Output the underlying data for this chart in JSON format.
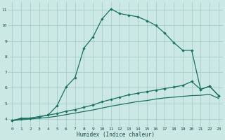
{
  "background_color": "#cce8e5",
  "grid_color": "#a8ceca",
  "line_color": "#1a7060",
  "xlabel": "Humidex (Indice chaleur)",
  "ylim": [
    3.5,
    11.5
  ],
  "xlim": [
    -0.5,
    23.5
  ],
  "ytick_vals": [
    4,
    5,
    6,
    7,
    8,
    9,
    10,
    11
  ],
  "xtick_vals": [
    0,
    1,
    2,
    3,
    4,
    5,
    6,
    7,
    8,
    9,
    10,
    11,
    12,
    13,
    14,
    15,
    16,
    17,
    18,
    19,
    20,
    21,
    22,
    23
  ],
  "line1_x": [
    0,
    1,
    2,
    3,
    4,
    5,
    6,
    7,
    8,
    9,
    10,
    11,
    12,
    13,
    14,
    15,
    16,
    17,
    18,
    19,
    20,
    21,
    22,
    23
  ],
  "line1_y": [
    3.9,
    4.05,
    4.05,
    4.15,
    4.25,
    4.85,
    6.05,
    6.65,
    8.55,
    9.25,
    10.4,
    11.05,
    10.75,
    10.65,
    10.55,
    10.3,
    10.0,
    9.5,
    8.9,
    8.4,
    8.4,
    5.9,
    6.1,
    5.5
  ],
  "line2_x": [
    0,
    1,
    2,
    3,
    4,
    5,
    6,
    7,
    8,
    9,
    10,
    11,
    12,
    13,
    14,
    15,
    16,
    17,
    18,
    19,
    20,
    21,
    22,
    23
  ],
  "line2_y": [
    3.9,
    4.0,
    4.05,
    4.15,
    4.25,
    4.35,
    4.5,
    4.6,
    4.75,
    4.9,
    5.1,
    5.25,
    5.4,
    5.55,
    5.65,
    5.75,
    5.85,
    5.95,
    6.05,
    6.15,
    6.4,
    5.9,
    6.1,
    5.5
  ],
  "line3_x": [
    0,
    1,
    2,
    3,
    4,
    5,
    6,
    7,
    8,
    9,
    10,
    11,
    12,
    13,
    14,
    15,
    16,
    17,
    18,
    19,
    20,
    21,
    22,
    23
  ],
  "line3_y": [
    3.9,
    3.95,
    4.0,
    4.05,
    4.1,
    4.18,
    4.28,
    4.38,
    4.48,
    4.58,
    4.7,
    4.82,
    4.92,
    5.02,
    5.12,
    5.18,
    5.28,
    5.35,
    5.4,
    5.45,
    5.5,
    5.52,
    5.58,
    5.32
  ],
  "marker": "D",
  "markersize": 2.2,
  "linewidth": 0.9
}
